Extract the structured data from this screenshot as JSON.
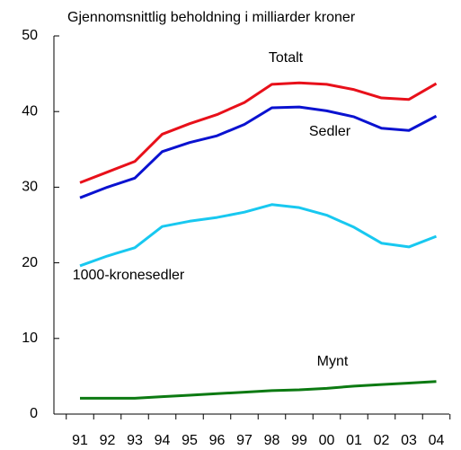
{
  "chart_data": {
    "type": "line",
    "title": "Gjennomsnittlig beholdning i milliarder kroner",
    "categories": [
      "91",
      "92",
      "93",
      "94",
      "95",
      "96",
      "97",
      "98",
      "99",
      "00",
      "01",
      "02",
      "03",
      "04"
    ],
    "series": [
      {
        "name": "Totalt",
        "color": "#e8101a",
        "values": [
          30.6,
          32.0,
          33.4,
          37.0,
          38.4,
          39.6,
          41.2,
          43.6,
          43.8,
          43.6,
          42.9,
          41.8,
          41.6,
          43.7
        ]
      },
      {
        "name": "Sedler",
        "color": "#0a12d0",
        "values": [
          28.6,
          30.0,
          31.2,
          34.7,
          35.9,
          36.8,
          38.3,
          40.5,
          40.6,
          40.1,
          39.3,
          37.8,
          37.5,
          39.4
        ]
      },
      {
        "name": "1000-kronesedler",
        "color": "#18c8f0",
        "values": [
          19.6,
          20.9,
          22.0,
          24.8,
          25.5,
          26.0,
          26.7,
          27.7,
          27.3,
          26.3,
          24.7,
          22.6,
          22.1,
          23.5
        ]
      },
      {
        "name": "Mynt",
        "color": "#0c7a12",
        "values": [
          2.1,
          2.1,
          2.1,
          2.3,
          2.5,
          2.7,
          2.9,
          3.1,
          3.2,
          3.4,
          3.7,
          3.9,
          4.1,
          4.3
        ]
      }
    ],
    "ylim": [
      0,
      50
    ],
    "yticks": [
      0,
      10,
      20,
      30,
      40,
      50
    ]
  }
}
